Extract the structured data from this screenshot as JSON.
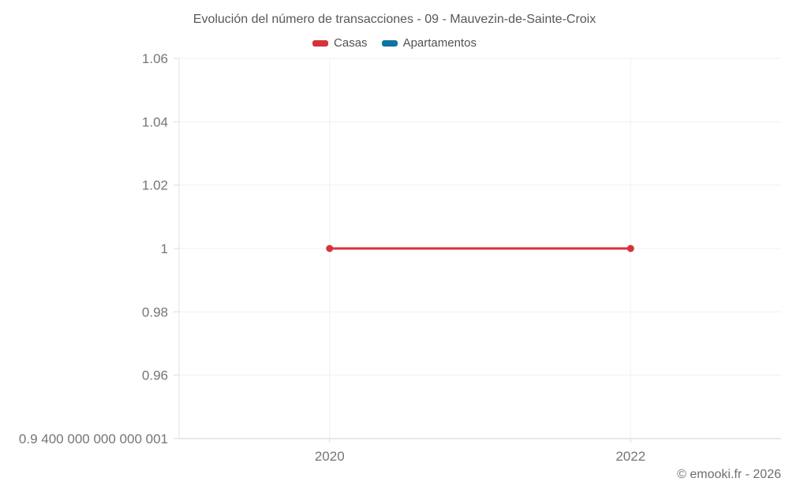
{
  "footer": {
    "copyright": "© emooki.fr - 2026"
  },
  "chart_data": {
    "type": "line",
    "title": "Evolución del número de transacciones - 09 - Mauvezin-de-Sainte-Croix",
    "xlabel": "",
    "ylabel": "",
    "xlim": [
      2019,
      2023
    ],
    "ylim": [
      0.94,
      1.06
    ],
    "grid": true,
    "legend_position": "top",
    "x_ticks": [
      {
        "v": 2020,
        "label": "2020"
      },
      {
        "v": 2022,
        "label": "2022"
      }
    ],
    "y_ticks": [
      {
        "v": 1.06,
        "label": "1.06"
      },
      {
        "v": 1.04,
        "label": "1.04"
      },
      {
        "v": 1.02,
        "label": "1.02"
      },
      {
        "v": 1.0,
        "label": "1"
      },
      {
        "v": 0.98,
        "label": "0.98"
      },
      {
        "v": 0.96,
        "label": "0.96"
      },
      {
        "v": 0.94,
        "label": "0.9 400 000 000 000 001"
      }
    ],
    "series": [
      {
        "name": "Casas",
        "color": "#d5333b",
        "marker": "circle",
        "points": [
          {
            "x": 2020,
            "y": 1
          },
          {
            "x": 2022,
            "y": 1
          }
        ]
      },
      {
        "name": "Apartamentos",
        "color": "#1173a5",
        "marker": "circle",
        "points": []
      }
    ]
  }
}
